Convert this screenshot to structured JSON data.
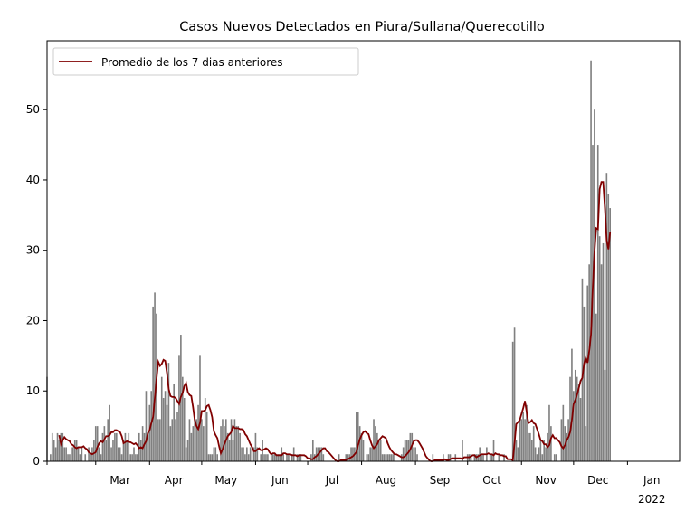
{
  "chart_data": {
    "type": "bar",
    "title": "Casos Nuevos Detectados en Piura/Sullana/Querecotillo",
    "xlabel": "",
    "ylabel": "",
    "start_date": "2021-02-01",
    "end_date": "2022-01-31",
    "ylim": [
      0,
      59.8
    ],
    "yticks": [
      0,
      10,
      20,
      30,
      40,
      50
    ],
    "xticks": [
      {
        "label": "Mar",
        "date": "2021-03-01"
      },
      {
        "label": "Apr",
        "date": "2021-04-01"
      },
      {
        "label": "May",
        "date": "2021-05-01"
      },
      {
        "label": "Jun",
        "date": "2021-06-01"
      },
      {
        "label": "Jul",
        "date": "2021-07-01"
      },
      {
        "label": "Aug",
        "date": "2021-08-01"
      },
      {
        "label": "Sep",
        "date": "2021-09-01"
      },
      {
        "label": "Oct",
        "date": "2021-10-01"
      },
      {
        "label": "Nov",
        "date": "2021-11-01"
      },
      {
        "label": "Dec",
        "date": "2021-12-01"
      },
      {
        "label": "Jan",
        "date": "2022-01-01",
        "sublabel": "2022"
      }
    ],
    "legend": {
      "label": "Promedio de los 7 dias anteriores",
      "loc": "upper left"
    },
    "bar_color": "#808080",
    "line_color": "#800000",
    "daily_cases": [
      12,
      0,
      1,
      4,
      3,
      2,
      4,
      3,
      4,
      4,
      2,
      2,
      1,
      1,
      2,
      2,
      3,
      3,
      2,
      1,
      2,
      0,
      1,
      0,
      2,
      1,
      2,
      3,
      5,
      5,
      2,
      1,
      4,
      5,
      3,
      6,
      8,
      2,
      3,
      4,
      4,
      2,
      2,
      1,
      3,
      4,
      3,
      4,
      1,
      1,
      2,
      1,
      1,
      4,
      3,
      5,
      4,
      10,
      4,
      8,
      10,
      22,
      24,
      21,
      6,
      6,
      12,
      9,
      10,
      8,
      14,
      5,
      6,
      11,
      6,
      7,
      15,
      18,
      12,
      9,
      2,
      3,
      6,
      4,
      5,
      6,
      6,
      8,
      15,
      6,
      5,
      9,
      7,
      1,
      1,
      1,
      2,
      2,
      1,
      0,
      5,
      6,
      5,
      6,
      4,
      3,
      6,
      3,
      6,
      5,
      5,
      4,
      2,
      2,
      1,
      2,
      1,
      2,
      0,
      2,
      4,
      2,
      0,
      1,
      3,
      1,
      1,
      1,
      0,
      1,
      1,
      1,
      1,
      1,
      1,
      2,
      1,
      0,
      1,
      1,
      0,
      1,
      2,
      0,
      1,
      1,
      1,
      0,
      0,
      0,
      0,
      0,
      1,
      3,
      1,
      2,
      2,
      2,
      2,
      1,
      0,
      0,
      0,
      0,
      0,
      0,
      0,
      0,
      1,
      0,
      0,
      0,
      1,
      1,
      1,
      2,
      2,
      2,
      7,
      7,
      5,
      4,
      3,
      0,
      1,
      1,
      2,
      2,
      6,
      5,
      4,
      3,
      3,
      1,
      1,
      1,
      1,
      1,
      1,
      1,
      1,
      0,
      0,
      0,
      1,
      2,
      3,
      3,
      3,
      4,
      4,
      2,
      2,
      1,
      0,
      0,
      0,
      0,
      0,
      0,
      0,
      0,
      1,
      0,
      0,
      0,
      0,
      0,
      1,
      0,
      0,
      1,
      1,
      0,
      0,
      1,
      0,
      0,
      0,
      3,
      0,
      0,
      1,
      1,
      1,
      0,
      1,
      1,
      1,
      2,
      1,
      1,
      0,
      2,
      0,
      1,
      1,
      3,
      0,
      0,
      1,
      0,
      0,
      1,
      0,
      0,
      0,
      0,
      17,
      19,
      3,
      2,
      6,
      6,
      7,
      6,
      8,
      4,
      4,
      3,
      5,
      2,
      1,
      2,
      3,
      1,
      3,
      2,
      4,
      8,
      5,
      0,
      1,
      1,
      0,
      0,
      6,
      8,
      5,
      4,
      6,
      12,
      16,
      10,
      13,
      12,
      11,
      9,
      26,
      22,
      5,
      25,
      28,
      57,
      45,
      50,
      21,
      45,
      32,
      28,
      31,
      13,
      41,
      38,
      36
    ]
  }
}
